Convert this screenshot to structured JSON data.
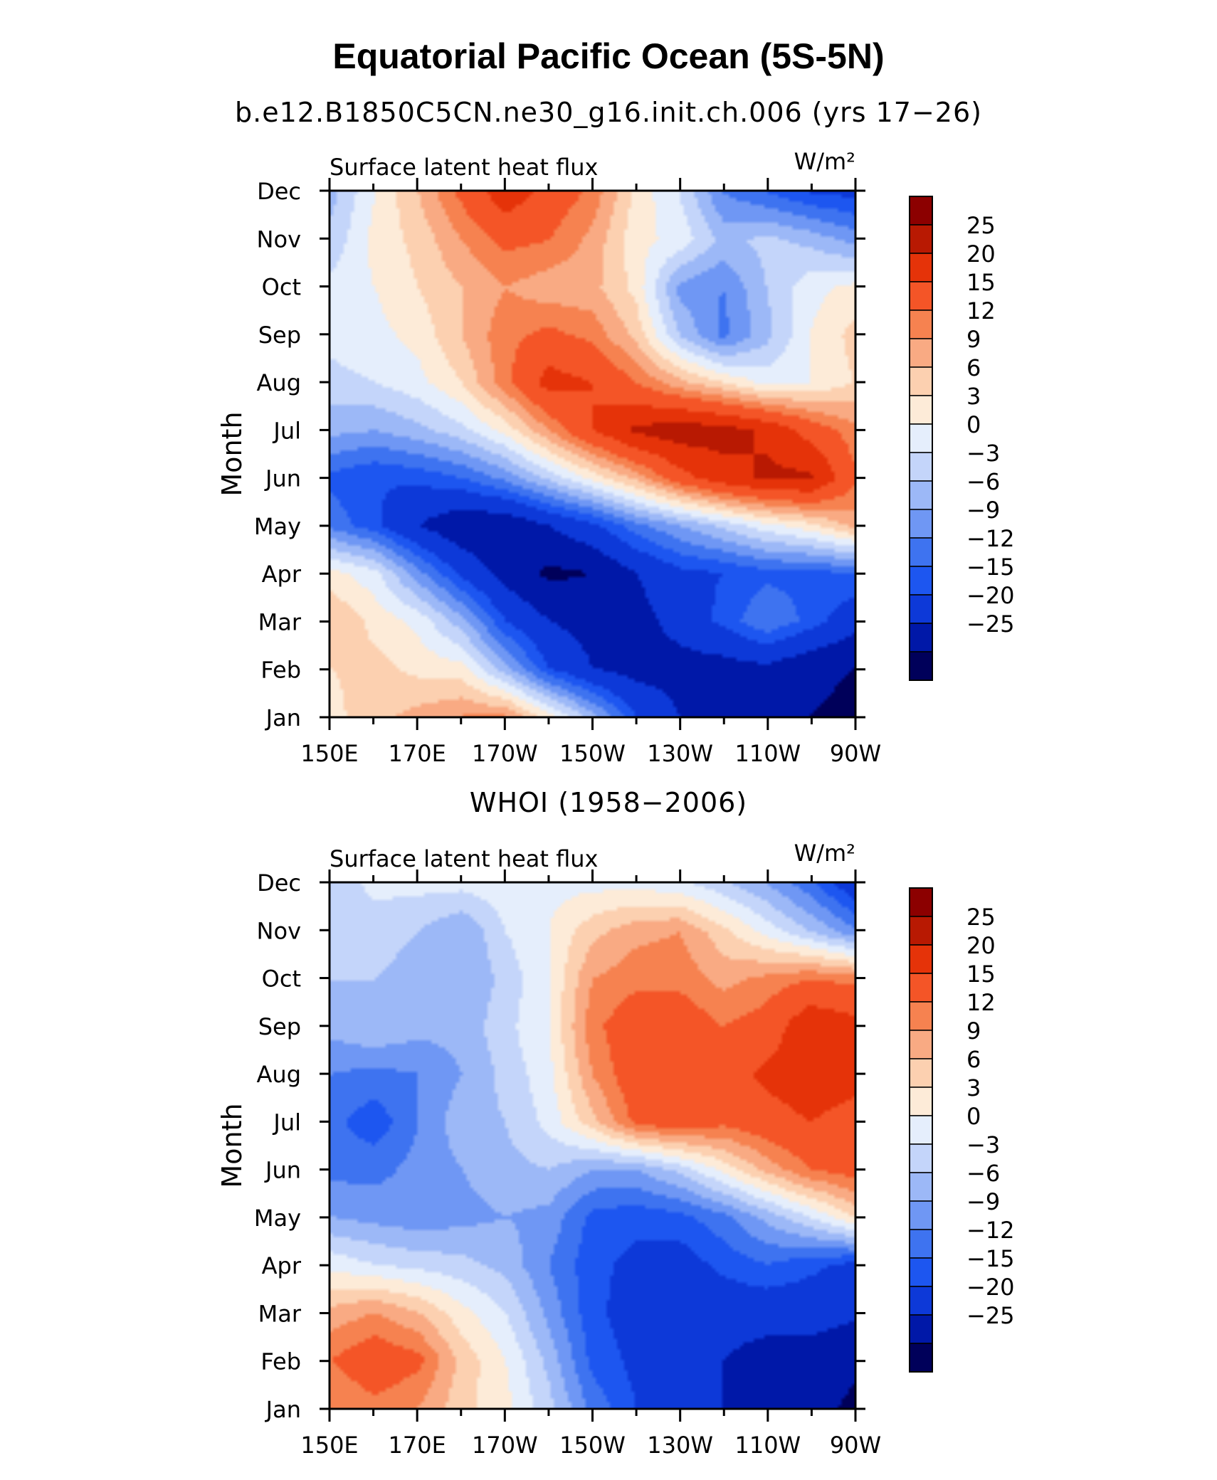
{
  "title": "Equatorial Pacific Ocean (5S-5N)",
  "chart_data": [
    {
      "type": "heatmap",
      "title": "b.e12.B1850C5CN.ne30_g16.init.ch.006 (yrs 17−26)",
      "panel_label": "Surface latent heat flux",
      "units": "W/m²",
      "ylabel": "Month",
      "x_tick_labels": [
        "150E",
        "170E",
        "170W",
        "150W",
        "130W",
        "110W",
        "90W"
      ],
      "y_tick_labels": [
        "Jan",
        "Feb",
        "Mar",
        "Apr",
        "May",
        "Jun",
        "Jul",
        "Aug",
        "Sep",
        "Oct",
        "Nov",
        "Dec"
      ],
      "colorbar_levels": [
        "25",
        "20",
        "15",
        "12",
        "9",
        "6",
        "3",
        "0",
        "−3",
        "−6",
        "−9",
        "−12",
        "−15",
        "−20",
        "−25"
      ],
      "longitudes": [
        150,
        160,
        170,
        180,
        190,
        200,
        210,
        220,
        230,
        240,
        250,
        260,
        270
      ],
      "values": [
        [
          5,
          8,
          10,
          12,
          12,
          4,
          -5,
          -15,
          -20,
          -22,
          -22,
          -25,
          -26
        ],
        [
          6,
          7,
          5,
          4,
          -5,
          -15,
          -20,
          -22,
          -22,
          -22,
          -21,
          -24,
          -25
        ],
        [
          9,
          5,
          2,
          -5,
          -15,
          -20,
          -22,
          -22,
          -18,
          -14,
          -9,
          -13,
          -18
        ],
        [
          4,
          1,
          -8,
          -16,
          -22,
          -26,
          -25,
          -20,
          -16,
          -15,
          -13,
          -13,
          -12
        ],
        [
          -10,
          -14,
          -20,
          -24,
          -24,
          -20,
          -16,
          -10,
          -6,
          -2,
          2,
          5,
          10
        ],
        [
          -13,
          -15,
          -14,
          -12,
          -8,
          -2,
          4,
          10,
          18,
          23,
          26,
          26,
          16
        ],
        [
          -5,
          -6,
          -4,
          -1,
          4,
          12,
          20,
          26,
          28,
          27,
          24,
          18,
          13
        ],
        [
          -1,
          0,
          2,
          6,
          14,
          22,
          20,
          15,
          10,
          6,
          2,
          3,
          6
        ],
        [
          1,
          2,
          4,
          9,
          14,
          16,
          14,
          8,
          -3,
          -10,
          -4,
          3,
          7
        ],
        [
          1,
          3,
          6,
          9,
          12,
          10,
          10,
          5,
          -7,
          -9,
          -3,
          2,
          4
        ],
        [
          -2,
          4,
          7,
          12,
          16,
          15,
          11,
          4,
          2,
          -4,
          -2,
          -4,
          -7
        ],
        [
          -4,
          3,
          9,
          16,
          23,
          18,
          14,
          5,
          0,
          -9,
          -12,
          -15,
          -16
        ]
      ]
    },
    {
      "type": "heatmap",
      "title": "WHOI (1958−2006)",
      "panel_label": "Surface latent heat flux",
      "units": "W/m²",
      "ylabel": "Month",
      "x_tick_labels": [
        "150E",
        "170E",
        "170W",
        "150W",
        "130W",
        "110W",
        "90W"
      ],
      "y_tick_labels": [
        "Jan",
        "Feb",
        "Mar",
        "Apr",
        "May",
        "Jun",
        "Jul",
        "Aug",
        "Sep",
        "Oct",
        "Nov",
        "Dec"
      ],
      "colorbar_levels": [
        "25",
        "20",
        "15",
        "12",
        "9",
        "6",
        "3",
        "0",
        "−3",
        "−6",
        "−9",
        "−12",
        "−15",
        "−20",
        "−25"
      ],
      "longitudes": [
        150,
        160,
        170,
        180,
        190,
        200,
        210,
        220,
        230,
        240,
        250,
        260,
        270
      ],
      "values": [
        [
          12,
          14,
          12,
          7,
          4,
          -2,
          -10,
          -15,
          -18,
          -20,
          -22,
          -23,
          -26
        ],
        [
          15,
          18,
          16,
          8,
          3,
          -4,
          -13,
          -16,
          -19,
          -20,
          -22,
          -22,
          -24
        ],
        [
          10,
          12,
          9,
          4,
          0,
          -7,
          -14,
          -17,
          -18,
          -18,
          -18,
          -18,
          -19
        ],
        [
          2,
          0,
          -1,
          -2,
          -4,
          -9,
          -14,
          -16,
          -17,
          -14,
          -12,
          -14,
          -16
        ],
        [
          -6,
          -7,
          -8,
          -7,
          -6,
          -7,
          -13,
          -14,
          -13,
          -10,
          -5,
          0,
          6
        ],
        [
          -10,
          -10,
          -8,
          -6,
          -4,
          -3,
          -6,
          -6,
          -2,
          4,
          10,
          15,
          17
        ],
        [
          -11,
          -14,
          -9,
          -4,
          -3,
          1,
          8,
          16,
          18,
          16,
          18,
          20,
          18
        ],
        [
          -9,
          -10,
          -9,
          -6,
          -2,
          2,
          12,
          18,
          20,
          18,
          21,
          23,
          22
        ],
        [
          -5,
          -3,
          -5,
          -5,
          -1,
          3,
          14,
          18,
          18,
          15,
          17,
          24,
          22
        ],
        [
          -3,
          -3,
          -4,
          -6,
          -2,
          3,
          12,
          14,
          14,
          11,
          13,
          15,
          14
        ],
        [
          -3,
          -2,
          -3,
          -6,
          0,
          3,
          8,
          11,
          12,
          7,
          2,
          -3,
          -8
        ],
        [
          -2,
          1,
          1,
          1,
          2,
          2,
          2,
          2,
          1,
          -2,
          -6,
          -11,
          -18
        ]
      ]
    }
  ],
  "colors": {
    "levels": [
      "#00005a",
      "#0018a8",
      "#0d39d8",
      "#1d56f0",
      "#3e73f0",
      "#6f97f4",
      "#9cb8f7",
      "#c4d5fa",
      "#e5eefc",
      "#fdebd8",
      "#fcd0b0",
      "#f9aa83",
      "#f68250",
      "#f45527",
      "#e53309",
      "#b81902",
      "#8c0000"
    ]
  }
}
